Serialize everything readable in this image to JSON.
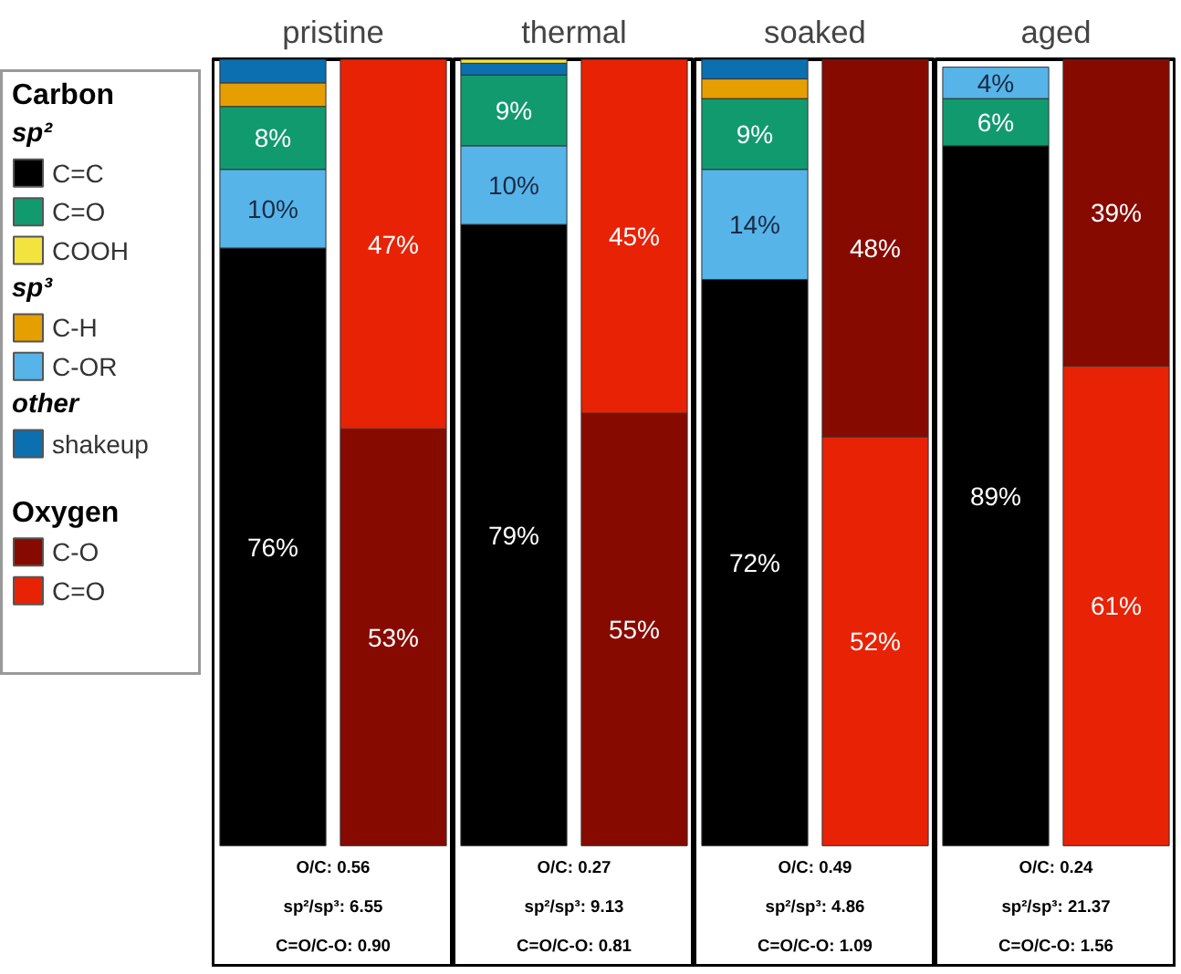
{
  "chart_data": [
    {
      "type": "other",
      "legend": "left",
      "legend_title": "Carbon",
      "series": [
        {
          "name": "sp²"
        },
        {
          "name": "C=C",
          "color": "#000000"
        },
        {
          "name": "C=O",
          "color": "#129a6f"
        },
        {
          "name": "COOH",
          "color": "#f2e33f"
        },
        {
          "name": "sp³"
        },
        {
          "name": "C-H",
          "color": "#e69f00"
        },
        {
          "name": "C-OR",
          "color": "#56b4e9"
        },
        {
          "name": "other"
        },
        {
          "name": "shakeup",
          "color": "#0b6fb0"
        },
        {
          "name": "Oxygen"
        },
        {
          "name": "C-O",
          "color": "#870a00"
        },
        {
          "name": "C=O",
          "color": "#e82205"
        }
      ]
    },
    {
      "type": "bar",
      "stacked": true,
      "title": "pristine",
      "categories": [
        null,
        null
      ],
      "annotations": [
        "O/C: 0.56",
        "sp²/sp³: 6.55",
        "C=O/C-O: 0.90"
      ],
      "series": [
        {
          "color": "#000000",
          "values": [
            76,
            null
          ],
          "value_labels": [
            "76%",
            null
          ]
        },
        {
          "color": "#56b4e9",
          "values": [
            10,
            null
          ],
          "value_labels": [
            "10%",
            null
          ]
        },
        {
          "color": "#129a6f",
          "values": [
            8,
            null
          ],
          "value_labels": [
            "8%",
            null
          ]
        },
        {
          "color": "#e69f00",
          "values": [
            3,
            null
          ]
        },
        {
          "color": "#0b6fb0",
          "values": [
            3,
            null
          ]
        },
        {
          "color": "#870a00",
          "values": [
            null,
            53
          ],
          "value_labels": [
            null,
            "53%"
          ]
        },
        {
          "color": "#e82205",
          "values": [
            null,
            47
          ],
          "value_labels": [
            null,
            "47%"
          ]
        }
      ]
    },
    {
      "type": "bar",
      "stacked": true,
      "title": "thermal",
      "categories": [
        null,
        null
      ],
      "annotations": [
        "O/C: 0.27",
        "sp²/sp³: 9.13",
        "C=O/C-O: 0.81"
      ],
      "series": [
        {
          "color": "#000000",
          "values": [
            79,
            null
          ],
          "value_labels": [
            "79%",
            null
          ]
        },
        {
          "color": "#56b4e9",
          "values": [
            10,
            null
          ],
          "value_labels": [
            "10%",
            null
          ]
        },
        {
          "color": "#129a6f",
          "values": [
            9,
            null
          ],
          "value_labels": [
            "9%",
            null
          ]
        },
        {
          "color": "#0b6fb0",
          "values": [
            1.5,
            null
          ]
        },
        {
          "color": "#f2e33f",
          "values": [
            0.5,
            null
          ]
        },
        {
          "color": "#870a00",
          "values": [
            null,
            55
          ],
          "value_labels": [
            null,
            "55%"
          ]
        },
        {
          "color": "#e82205",
          "values": [
            null,
            45
          ],
          "value_labels": [
            null,
            "45%"
          ]
        }
      ]
    },
    {
      "type": "bar",
      "stacked": true,
      "title": "soaked",
      "categories": [
        null,
        null
      ],
      "annotations": [
        "O/C: 0.49",
        "sp²/sp³: 4.86",
        "C=O/C-O: 1.09"
      ],
      "series": [
        {
          "color": "#000000",
          "values": [
            72,
            null
          ],
          "value_labels": [
            "72%",
            null
          ]
        },
        {
          "color": "#56b4e9",
          "values": [
            14,
            null
          ],
          "value_labels": [
            "14%",
            null
          ]
        },
        {
          "color": "#129a6f",
          "values": [
            9,
            null
          ],
          "value_labels": [
            "9%",
            null
          ]
        },
        {
          "color": "#e69f00",
          "values": [
            2.5,
            null
          ]
        },
        {
          "color": "#0b6fb0",
          "values": [
            2.5,
            null
          ]
        },
        {
          "color": "#e82205",
          "values": [
            null,
            52
          ],
          "value_labels": [
            null,
            "52%"
          ]
        },
        {
          "color": "#870a00",
          "values": [
            null,
            48
          ],
          "value_labels": [
            null,
            "48%"
          ]
        }
      ]
    },
    {
      "type": "bar",
      "stacked": true,
      "title": "aged",
      "categories": [
        null,
        null
      ],
      "annotations": [
        "O/C: 0.24",
        "sp²/sp³: 21.37",
        "C=O/C-O: 1.56"
      ],
      "series": [
        {
          "color": "#000000",
          "values": [
            89,
            null
          ],
          "value_labels": [
            "89%",
            null
          ]
        },
        {
          "color": "#129a6f",
          "values": [
            6,
            null
          ],
          "value_labels": [
            "6%",
            null
          ]
        },
        {
          "color": "#56b4e9",
          "values": [
            4,
            null
          ],
          "value_labels": [
            "4%",
            null
          ]
        },
        {
          "color": "#e82205",
          "values": [
            null,
            61
          ],
          "value_labels": [
            null,
            "61%"
          ]
        },
        {
          "color": "#870a00",
          "values": [
            null,
            39
          ],
          "value_labels": [
            null,
            "39%"
          ]
        }
      ]
    }
  ]
}
